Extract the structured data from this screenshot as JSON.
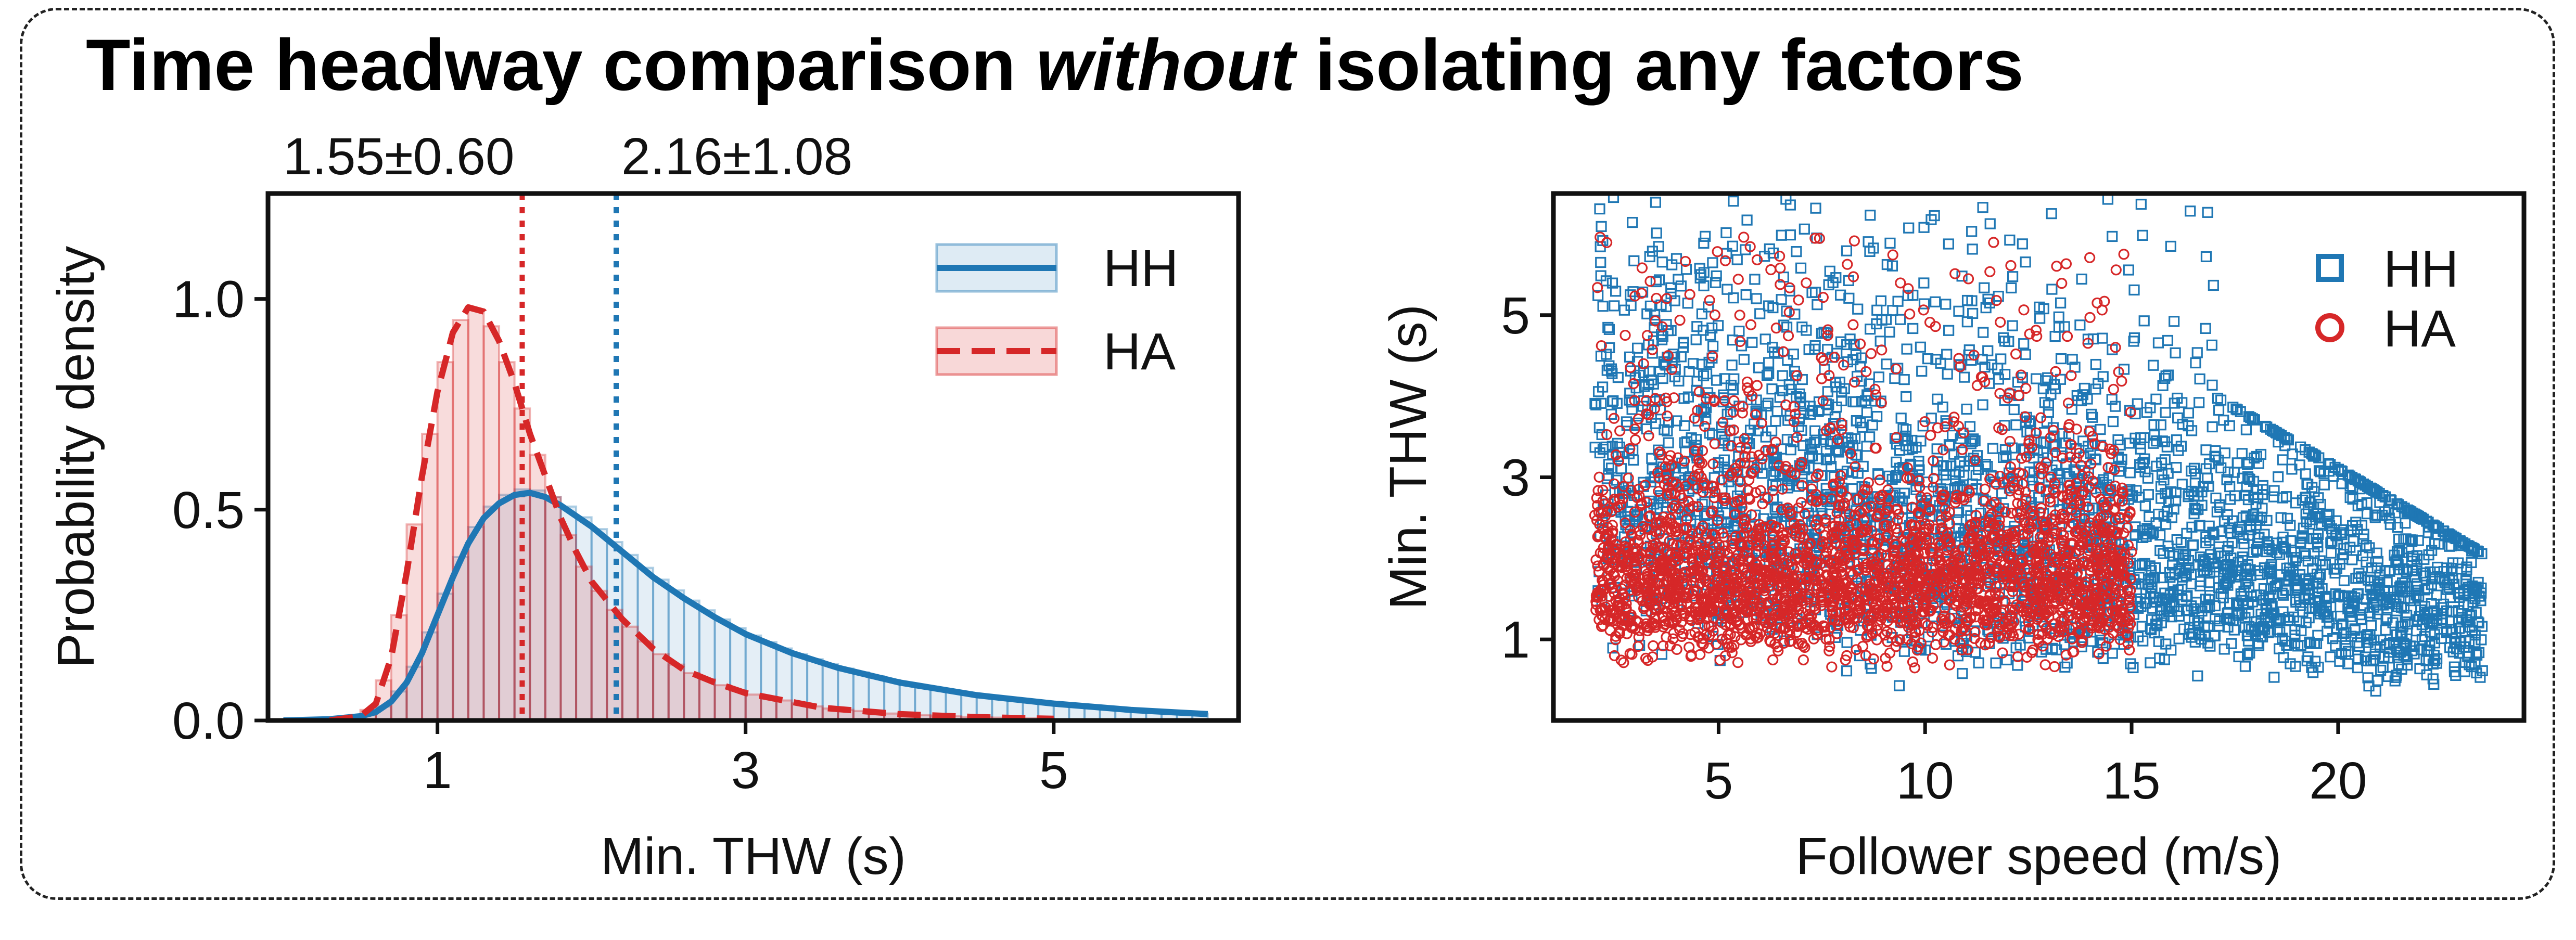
{
  "title": {
    "part1": "Time headway comparison ",
    "part2_italic": "without",
    "part3": " isolating any factors"
  },
  "chart_data": [
    {
      "type": "histogram+kde",
      "xlabel": "Min. THW (s)",
      "ylabel": "Probability density",
      "xlim": [
        -0.1,
        6.2
      ],
      "ylim": [
        0,
        1.25
      ],
      "xticks": [
        1,
        3,
        5
      ],
      "yticks": [
        0.0,
        0.5,
        1.0
      ],
      "xtick_labels": [
        "1",
        "3",
        "5"
      ],
      "ytick_labels": [
        "0.0",
        "0.5",
        "1.0"
      ],
      "grid": false,
      "legend_position": "top-right",
      "annotations": [
        {
          "text": "1.55±0.60",
          "x": 1.55,
          "color": "#d62728"
        },
        {
          "text": "2.16±1.08",
          "x": 2.16,
          "color": "#1f77b4"
        }
      ],
      "bin_width": 0.1,
      "series": [
        {
          "name": "HH",
          "color": "#1f77b4",
          "line_style": "solid",
          "mean": 2.16,
          "sd": 1.08,
          "kde_x": [
            0.0,
            0.3,
            0.5,
            0.6,
            0.7,
            0.8,
            0.9,
            1.0,
            1.1,
            1.2,
            1.3,
            1.4,
            1.5,
            1.6,
            1.7,
            1.8,
            2.0,
            2.2,
            2.4,
            2.6,
            2.8,
            3.0,
            3.3,
            3.6,
            4.0,
            4.5,
            5.0,
            5.5,
            6.0
          ],
          "kde_y": [
            0.0,
            0.003,
            0.01,
            0.02,
            0.045,
            0.09,
            0.16,
            0.25,
            0.34,
            0.42,
            0.48,
            0.515,
            0.535,
            0.54,
            0.53,
            0.51,
            0.46,
            0.4,
            0.34,
            0.29,
            0.245,
            0.205,
            0.16,
            0.125,
            0.09,
            0.06,
            0.04,
            0.025,
            0.015
          ]
        },
        {
          "name": "HA",
          "color": "#d62728",
          "line_style": "dashed",
          "mean": 1.55,
          "sd": 0.6,
          "kde_x": [
            0.3,
            0.5,
            0.6,
            0.7,
            0.8,
            0.9,
            1.0,
            1.1,
            1.2,
            1.3,
            1.4,
            1.5,
            1.6,
            1.7,
            1.8,
            1.9,
            2.0,
            2.2,
            2.4,
            2.6,
            2.8,
            3.0,
            3.5,
            4.0,
            4.5,
            5.0
          ],
          "kde_y": [
            0.0,
            0.01,
            0.04,
            0.15,
            0.35,
            0.58,
            0.78,
            0.92,
            0.98,
            0.97,
            0.9,
            0.8,
            0.68,
            0.58,
            0.48,
            0.4,
            0.33,
            0.24,
            0.17,
            0.12,
            0.09,
            0.065,
            0.03,
            0.015,
            0.008,
            0.004
          ]
        }
      ]
    },
    {
      "type": "scatter",
      "xlabel": "Follower speed (m/s)",
      "ylabel": "Min. THW (s)",
      "xlim": [
        1.0,
        24.5
      ],
      "ylim": [
        0.0,
        6.5
      ],
      "xticks": [
        5,
        10,
        15,
        20
      ],
      "yticks": [
        1,
        3,
        5
      ],
      "xtick_labels": [
        "5",
        "10",
        "15",
        "20"
      ],
      "ytick_labels": [
        "1",
        "3",
        "5"
      ],
      "grid": false,
      "legend_position": "top-right",
      "series": [
        {
          "name": "HH",
          "color": "#1f77b4",
          "marker": "square",
          "approx_range_x": [
            1.0,
            23.5
          ],
          "approx_range_y": [
            0.2,
            6.5
          ],
          "approx_center": [
            11.0,
            2.3
          ]
        },
        {
          "name": "HA",
          "color": "#d62728",
          "marker": "circle",
          "approx_range_x": [
            1.0,
            15.0
          ],
          "approx_range_y": [
            0.6,
            6.3
          ],
          "approx_center": [
            9.5,
            1.7
          ]
        }
      ]
    }
  ]
}
